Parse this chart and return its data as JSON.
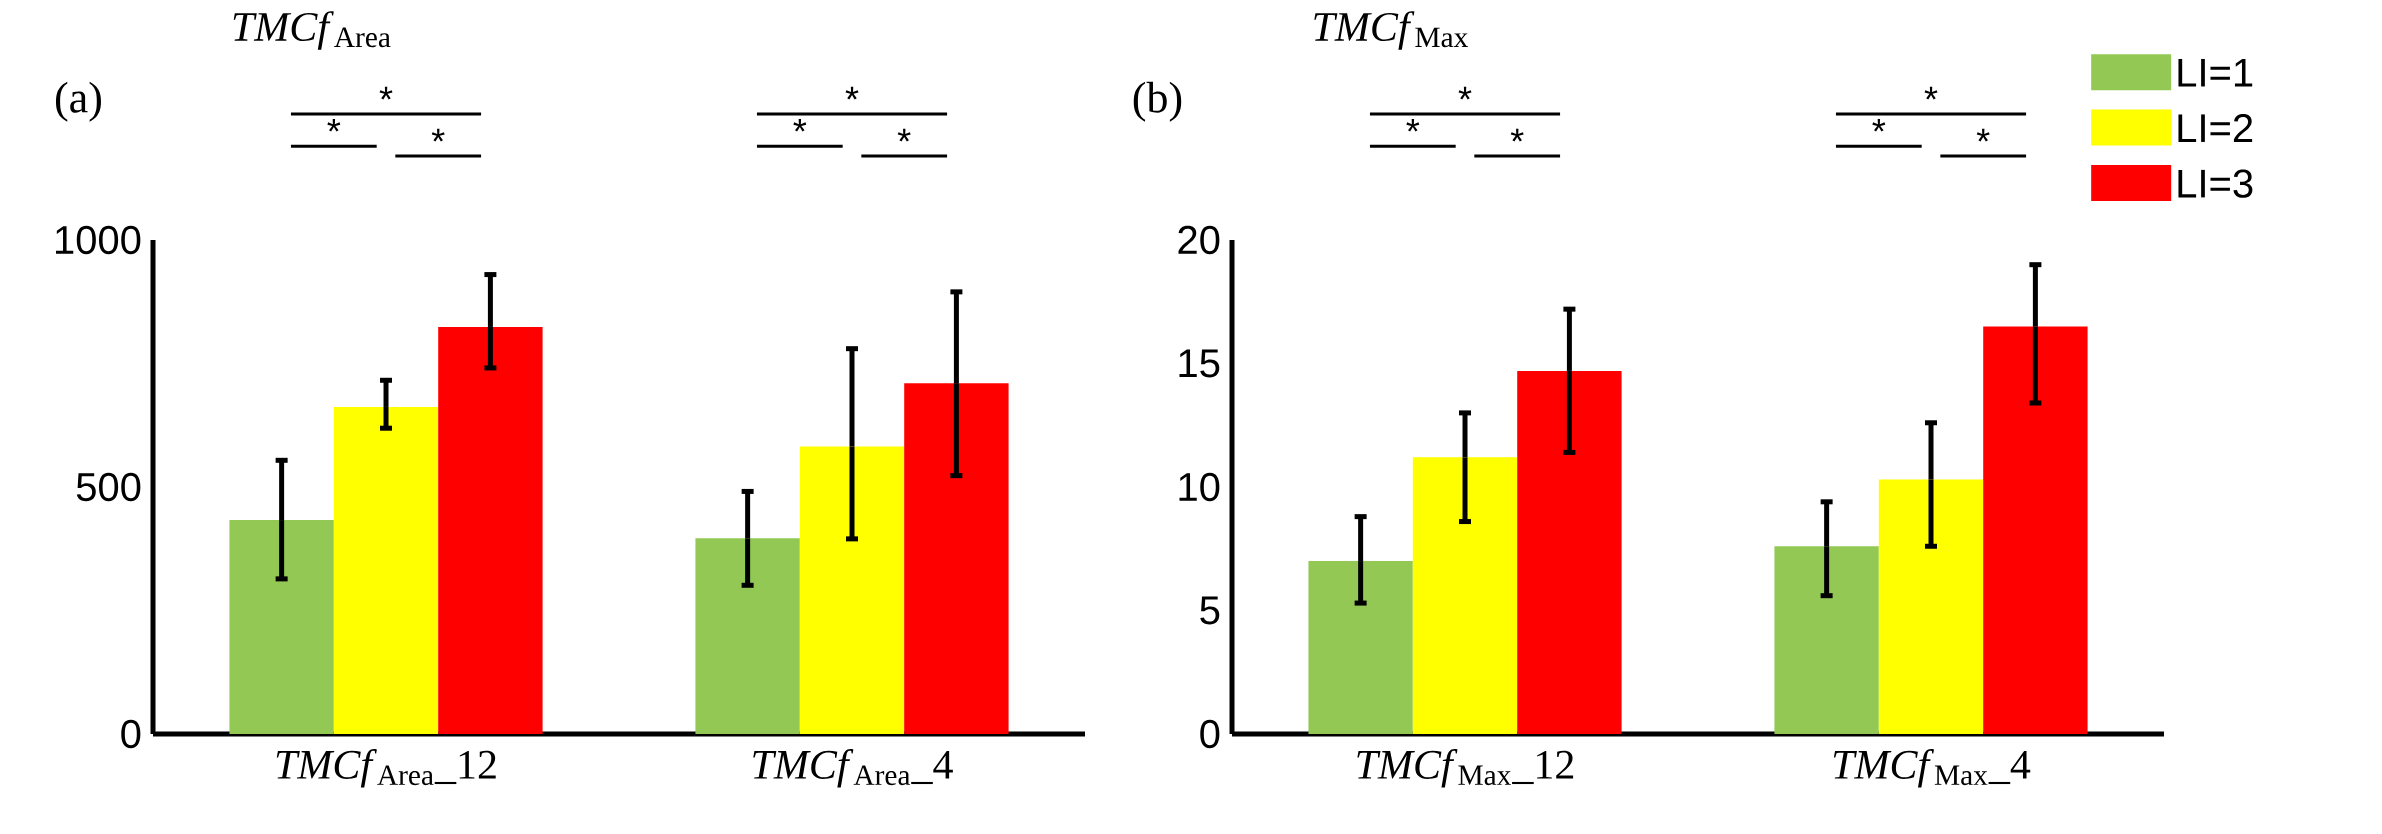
{
  "chart_data": [
    {
      "type": "bar",
      "title": "*TMCf*$_{Area}$",
      "categories": [
        "*TMCf*$_{Area}$_12",
        "*TMCf*$_{Area}$_4"
      ],
      "series": [
        {
          "color": "#92c853",
          "values": [
            433,
            396
          ],
          "errors": [
            [
              314,
              554
            ],
            [
              301,
              491
            ]
          ]
        },
        {
          "color": "#ffff00",
          "values": [
            662,
            582
          ],
          "errors": [
            [
              619,
              716
            ],
            [
              395,
              780
            ]
          ]
        },
        {
          "color": "#ff0000",
          "values": [
            824,
            710
          ],
          "errors": [
            [
              741,
              930
            ],
            [
              523,
              895
            ]
          ]
        }
      ],
      "ylim": [
        0,
        1000
      ],
      "yticks": [
        0,
        500,
        1000
      ],
      "legend": false,
      "annotations": [
        "(a)",
        "*",
        "*",
        "*",
        "*",
        "*",
        "*"
      ]
    },
    {
      "type": "bar",
      "title": "*TMCf*$_{Max}$",
      "categories": [
        "*TMCf*$_{Max}$_12",
        "*TMCf*$_{Max}$_4"
      ],
      "series": [
        {
          "name": "LI=1",
          "color": "#92c853",
          "values": [
            7.0,
            7.6
          ],
          "errors": [
            [
              5.3,
              8.8
            ],
            [
              5.6,
              9.4
            ]
          ]
        },
        {
          "name": "LI=2",
          "color": "#ffff00",
          "values": [
            11.2,
            10.3
          ],
          "errors": [
            [
              8.6,
              13.0
            ],
            [
              7.6,
              12.6
            ]
          ]
        },
        {
          "name": "LI=3",
          "color": "#ff0000",
          "values": [
            14.7,
            16.5
          ],
          "errors": [
            [
              11.4,
              17.2
            ],
            [
              13.4,
              19.0
            ]
          ]
        }
      ],
      "ylim": [
        0,
        20
      ],
      "yticks": [
        0,
        5,
        10,
        15,
        20
      ],
      "legend": "top right",
      "annotations": [
        "(b)",
        "*",
        "*",
        "*",
        "*",
        "*",
        "*"
      ]
    }
  ]
}
